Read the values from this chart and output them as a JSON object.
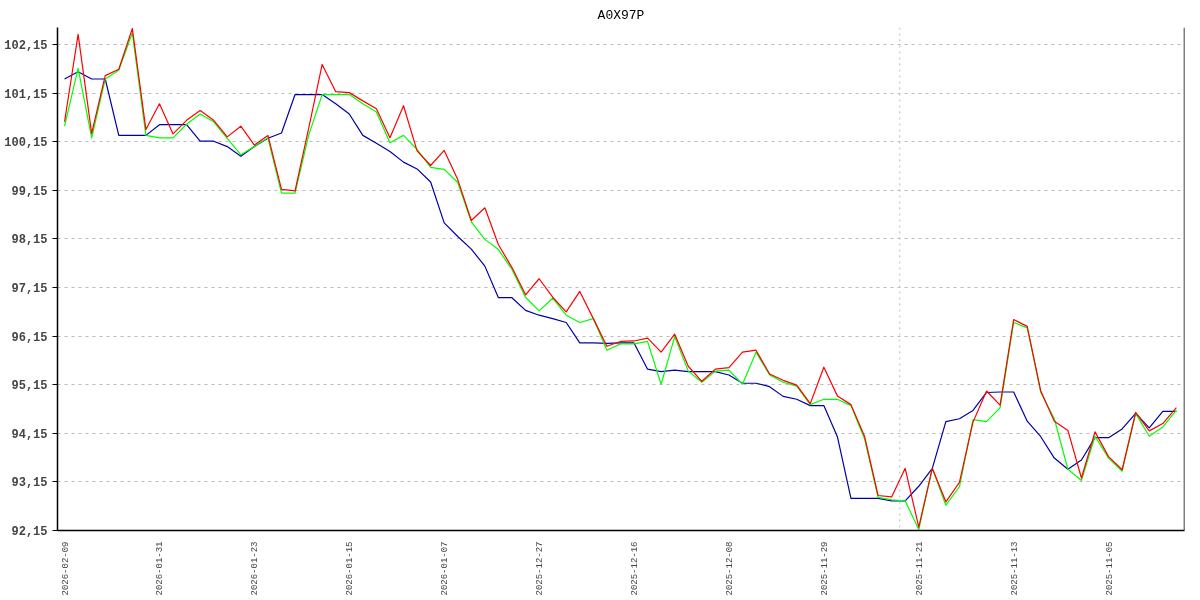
{
  "chart_data": {
    "type": "line",
    "title": "A0X97P",
    "categories": [
      "2026-02-09",
      null,
      null,
      null,
      null,
      null,
      null,
      "2026-01-31",
      null,
      null,
      null,
      null,
      null,
      null,
      "2026-01-23",
      null,
      null,
      null,
      null,
      null,
      null,
      "2026-01-15",
      null,
      null,
      null,
      null,
      null,
      null,
      "2026-01-07",
      null,
      null,
      null,
      null,
      null,
      null,
      "2025-12-27",
      null,
      null,
      null,
      null,
      null,
      null,
      "2025-12-16",
      null,
      null,
      null,
      null,
      null,
      null,
      "2025-12-08",
      null,
      null,
      null,
      null,
      null,
      null,
      "2025-11-29",
      null,
      null,
      null,
      null,
      null,
      null,
      "2025-11-21",
      null,
      null,
      null,
      null,
      null,
      null,
      "2025-11-13",
      null,
      null,
      null,
      null,
      null,
      null,
      "2025-11-05",
      null,
      null,
      null,
      null,
      null
    ],
    "series": [
      {
        "color": "#0000aa",
        "values": [
          101.44,
          101.59,
          101.44,
          101.44,
          100.28,
          100.28,
          100.28,
          100.5,
          100.5,
          100.5,
          100.16,
          100.16,
          100.05,
          99.85,
          100.05,
          100.22,
          100.33,
          101.12,
          101.12,
          101.12,
          100.93,
          100.72,
          100.28,
          100.12,
          99.95,
          99.73,
          99.59,
          99.32,
          98.48,
          98.2,
          97.94,
          97.59,
          96.94,
          96.94,
          96.68,
          96.58,
          96.51,
          96.43,
          96.01,
          96.01,
          96.0,
          96.01,
          96.01,
          95.47,
          95.42,
          95.45,
          95.42,
          95.42,
          95.42,
          95.35,
          95.18,
          95.18,
          95.11,
          94.91,
          94.85,
          94.72,
          94.72,
          94.08,
          92.81,
          92.81,
          92.81,
          92.76,
          92.76,
          93.06,
          93.43,
          94.39,
          94.45,
          94.62,
          94.99,
          95.0,
          95.0,
          94.4,
          94.08,
          93.64,
          93.41,
          93.6,
          94.06,
          94.06,
          94.24,
          94.56,
          94.26,
          94.6,
          94.6
        ]
      },
      {
        "color": "#00ff00",
        "values": [
          100.47,
          101.66,
          100.23,
          101.44,
          101.62,
          102.39,
          100.28,
          100.23,
          100.23,
          100.51,
          100.72,
          100.56,
          100.22,
          99.88,
          100.05,
          100.23,
          99.09,
          99.09,
          100.28,
          101.12,
          101.12,
          101.12,
          100.93,
          100.76,
          100.13,
          100.28,
          99.99,
          99.62,
          99.58,
          99.31,
          98.5,
          98.14,
          97.93,
          97.52,
          96.95,
          96.67,
          96.93,
          96.58,
          96.43,
          96.51,
          95.86,
          95.99,
          95.99,
          96.04,
          95.16,
          96.14,
          95.43,
          95.2,
          95.43,
          95.45,
          95.16,
          95.82,
          95.35,
          95.2,
          95.12,
          94.74,
          94.85,
          94.85,
          94.72,
          94.04,
          92.83,
          92.78,
          92.76,
          92.17,
          93.43,
          92.67,
          93.05,
          94.43,
          94.39,
          94.68,
          96.43,
          96.32,
          94.99,
          94.45,
          93.41,
          93.18,
          94.09,
          93.64,
          93.37,
          94.56,
          94.09,
          94.28,
          94.62
        ]
      },
      {
        "color": "#ff0000",
        "values": [
          100.56,
          102.36,
          100.32,
          101.51,
          101.64,
          102.48,
          100.4,
          100.93,
          100.31,
          100.59,
          100.79,
          100.59,
          100.25,
          100.47,
          100.08,
          100.28,
          99.17,
          99.14,
          100.42,
          101.74,
          101.18,
          101.16,
          100.99,
          100.83,
          100.23,
          100.89,
          99.96,
          99.66,
          99.97,
          99.37,
          98.53,
          98.79,
          98.03,
          97.56,
          97.0,
          97.33,
          96.95,
          96.65,
          97.07,
          96.51,
          95.94,
          96.04,
          96.05,
          96.11,
          95.82,
          96.19,
          95.53,
          95.22,
          95.47,
          95.5,
          95.82,
          95.86,
          95.37,
          95.24,
          95.14,
          94.76,
          95.51,
          94.92,
          94.74,
          94.09,
          92.87,
          92.84,
          93.43,
          92.22,
          93.43,
          92.74,
          93.14,
          94.38,
          95.02,
          94.73,
          96.49,
          96.35,
          95.02,
          94.4,
          94.21,
          93.23,
          94.18,
          93.67,
          93.4,
          94.58,
          94.2,
          94.35,
          94.68
        ]
      }
    ],
    "ylim": [
      92.15,
      102.5
    ],
    "yticks": [
      {
        "value": 92.15,
        "label": "92,15"
      },
      {
        "value": 93.15,
        "label": "93,15"
      },
      {
        "value": 94.15,
        "label": "94,15"
      },
      {
        "value": 95.15,
        "label": "95,15"
      },
      {
        "value": 96.15,
        "label": "96,15"
      },
      {
        "value": 97.15,
        "label": "97,15"
      },
      {
        "value": 98.15,
        "label": "98,15"
      },
      {
        "value": 99.15,
        "label": "99,15"
      },
      {
        "value": 100.15,
        "label": "100,15"
      },
      {
        "value": 101.15,
        "label": "101,15"
      },
      {
        "value": 102.15,
        "label": "102,15"
      }
    ],
    "grid": "y"
  }
}
